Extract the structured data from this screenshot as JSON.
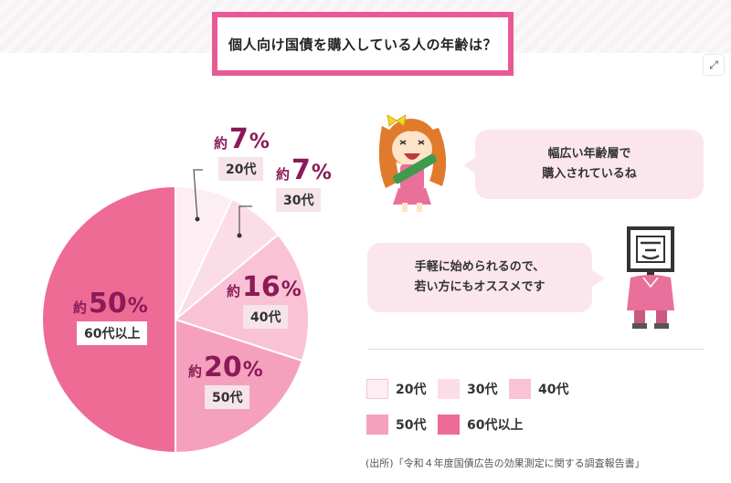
{
  "title": "個人向け国債を購入している人の年齢は？",
  "chart_data": {
    "type": "pie",
    "slices": [
      {
        "label": "20代",
        "value": 7,
        "color": "#fdeef3"
      },
      {
        "label": "30代",
        "value": 7,
        "color": "#fbdde7"
      },
      {
        "label": "40代",
        "value": 16,
        "color": "#f9c2d5"
      },
      {
        "label": "50代",
        "value": 20,
        "color": "#f5a1bd"
      },
      {
        "label": "60代以上",
        "value": 50,
        "color": "#ee6b95"
      }
    ],
    "prefix": "約",
    "unit": "%",
    "legend": [
      "20代",
      "30代",
      "40代",
      "50代",
      "60代以上"
    ]
  },
  "bubbles": {
    "girl": [
      "幅広い年齢層で",
      "購入されているね"
    ],
    "robot": [
      "手軽に始められるので、",
      "若い方にもオススメです"
    ]
  },
  "source": "(出所)「令和４年度国債広告の効果測定に関する調査報告書」"
}
